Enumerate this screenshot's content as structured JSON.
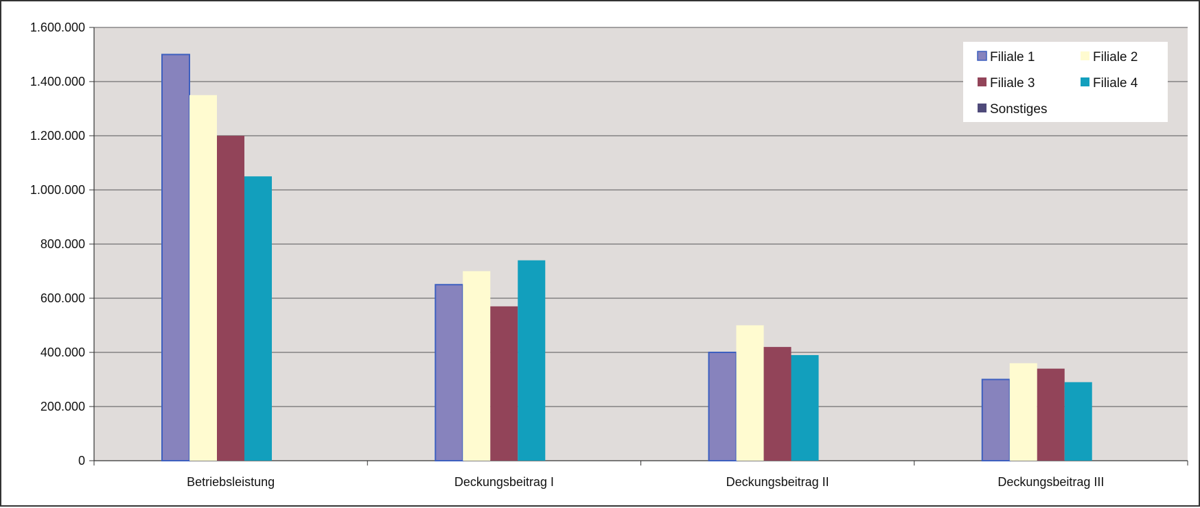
{
  "chart_data": {
    "type": "bar",
    "categories": [
      "Betriebsleistung",
      "Deckungsbeitrag I",
      "Deckungsbeitrag II",
      "Deckungsbeitrag III"
    ],
    "series": [
      {
        "name": "Filiale 1",
        "color": "#8783bd",
        "values": [
          1500000,
          650000,
          400000,
          300000
        ]
      },
      {
        "name": "Filiale 2",
        "color": "#fffbd0",
        "values": [
          1350000,
          700000,
          500000,
          360000
        ]
      },
      {
        "name": "Filiale 3",
        "color": "#924459",
        "values": [
          1200000,
          570000,
          420000,
          340000
        ]
      },
      {
        "name": "Filiale 4",
        "color": "#129fbd",
        "values": [
          1050000,
          740000,
          390000,
          290000
        ]
      },
      {
        "name": "Sonstiges",
        "color": "#4f4a7a",
        "values": [
          0,
          0,
          0,
          0
        ]
      }
    ],
    "ylim": [
      0,
      1600000
    ],
    "yticks": [
      0,
      200000,
      400000,
      600000,
      800000,
      1000000,
      1200000,
      1400000,
      1600000
    ],
    "ytick_labels": [
      "0",
      "200.000",
      "400.000",
      "600.000",
      "800.000",
      "1.000.000",
      "1.200.000",
      "1.400.000",
      "1.600.000"
    ],
    "title": "",
    "xlabel": "",
    "ylabel": "",
    "grid": true,
    "legend_position": "top-right",
    "plot_background": "#e0dcda",
    "series_outline_color": "#3d5fbf"
  }
}
